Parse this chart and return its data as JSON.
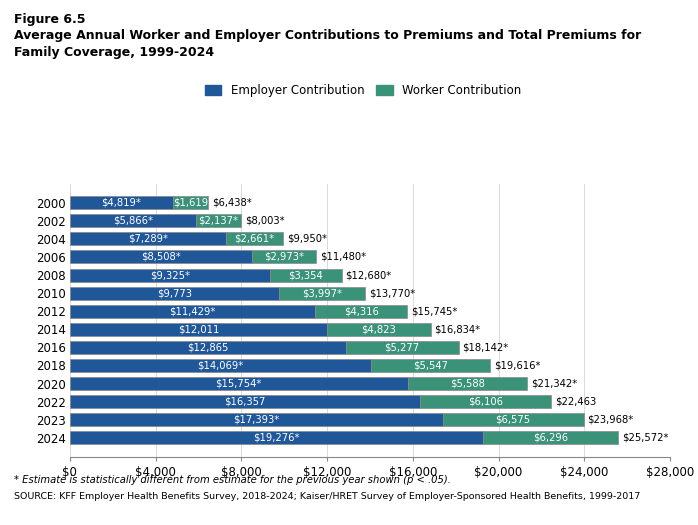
{
  "years": [
    "2000",
    "2002",
    "2004",
    "2006",
    "2008",
    "2010",
    "2012",
    "2014",
    "2016",
    "2018",
    "2020",
    "2022",
    "2023",
    "2024"
  ],
  "employer": [
    4819,
    5866,
    7289,
    8508,
    9325,
    9773,
    11429,
    12011,
    12865,
    14069,
    15754,
    16357,
    17393,
    19276
  ],
  "worker": [
    1619,
    2137,
    2661,
    2973,
    3354,
    3997,
    4316,
    4823,
    5277,
    5547,
    5588,
    6106,
    6575,
    6296
  ],
  "total": [
    6438,
    8003,
    9950,
    11480,
    12680,
    13770,
    15745,
    16834,
    18142,
    19616,
    21342,
    22463,
    23968,
    25572
  ],
  "employer_labels": [
    "$4,819*",
    "$5,866*",
    "$7,289*",
    "$8,508*",
    "$9,325*",
    "$9,773",
    "$11,429*",
    "$12,011",
    "$12,865",
    "$14,069*",
    "$15,754*",
    "$16,357",
    "$17,393*",
    "$19,276*"
  ],
  "worker_labels": [
    "$1,619",
    "$2,137*",
    "$2,661*",
    "$2,973*",
    "$3,354",
    "$3,997*",
    "$4,316",
    "$4,823",
    "$5,277",
    "$5,547",
    "$5,588",
    "$6,106",
    "$6,575",
    "$6,296"
  ],
  "total_labels": [
    "$6,438*",
    "$8,003*",
    "$9,950*",
    "$11,480*",
    "$12,680*",
    "$13,770*",
    "$15,745*",
    "$16,834*",
    "$18,142*",
    "$19,616*",
    "$21,342*",
    "$22,463",
    "$23,968*",
    "$25,572*"
  ],
  "employer_color": "#1f5799",
  "worker_color": "#3a9278",
  "figure_title_line1": "Figure 6.5",
  "figure_title_line2": "Average Annual Worker and Employer Contributions to Premiums and Total Premiums for",
  "figure_title_line3": "Family Coverage, 1999-2024",
  "legend_employer": "Employer Contribution",
  "legend_worker": "Worker Contribution",
  "xlim": [
    0,
    28000
  ],
  "xticks": [
    0,
    4000,
    8000,
    12000,
    16000,
    20000,
    24000,
    28000
  ],
  "xtick_labels": [
    "$0",
    "$4,000",
    "$8,000",
    "$12,000",
    "$16,000",
    "$20,000",
    "$24,000",
    "$28,000"
  ],
  "footnote1": "* Estimate is statistically different from estimate for the previous year shown (p < .05).",
  "footnote2": "SOURCE: KFF Employer Health Benefits Survey, 2018-2024; Kaiser/HRET Survey of Employer-Sponsored Health Benefits, 1999-2017",
  "bar_height": 0.72,
  "font_size_bar_label": 7.2,
  "font_size_tick": 8.5,
  "background_color": "#ffffff"
}
